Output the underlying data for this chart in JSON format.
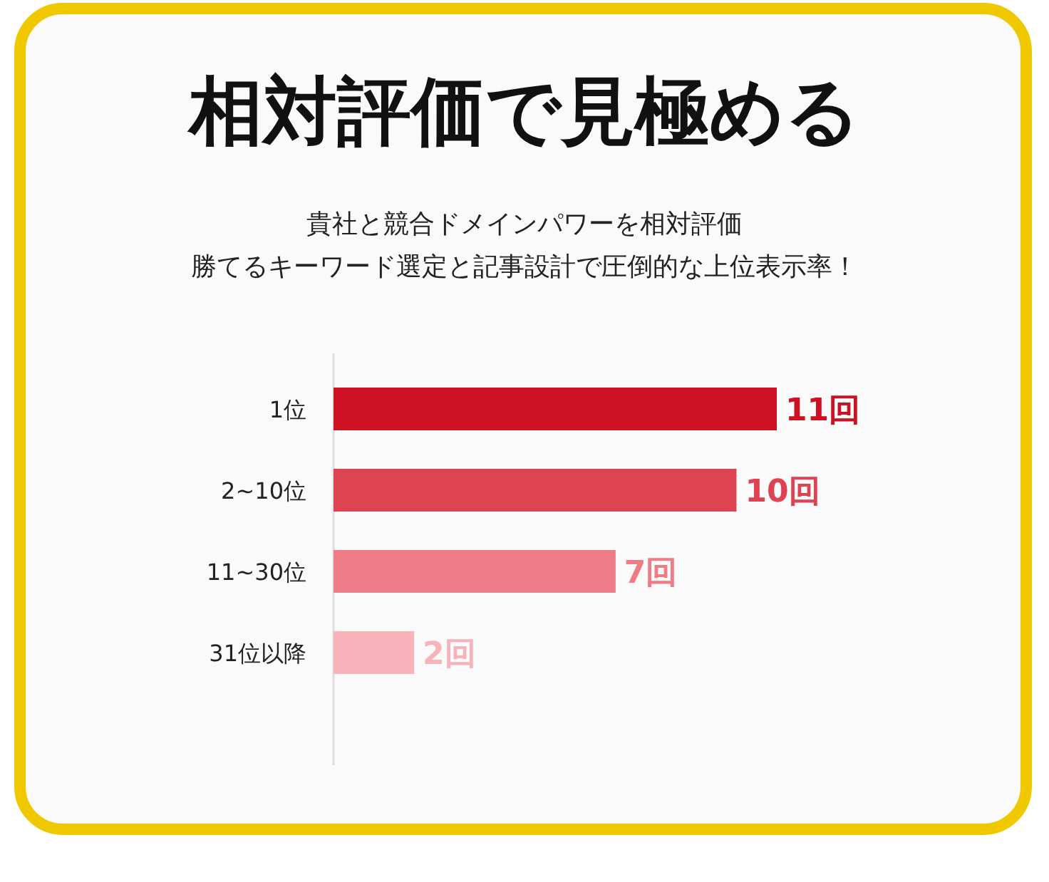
{
  "chart_data": {
    "type": "bar",
    "orientation": "horizontal",
    "title": "相対評価で見極める",
    "subtitle": [
      "貴社と競合ドメインパワーを相対評価",
      "勝てるキーワード選定と記事設計で圧倒的な上位表示率！"
    ],
    "categories": [
      "1位",
      "2~10位",
      "11~30位",
      "31位以降"
    ],
    "values": [
      11,
      10,
      7,
      2
    ],
    "colors": [
      "#cc1122",
      "#de4352",
      "#ee7b86",
      "#f7b3b9"
    ],
    "value_labels": [
      "11回",
      "10回",
      "7回",
      "2回"
    ]
  }
}
